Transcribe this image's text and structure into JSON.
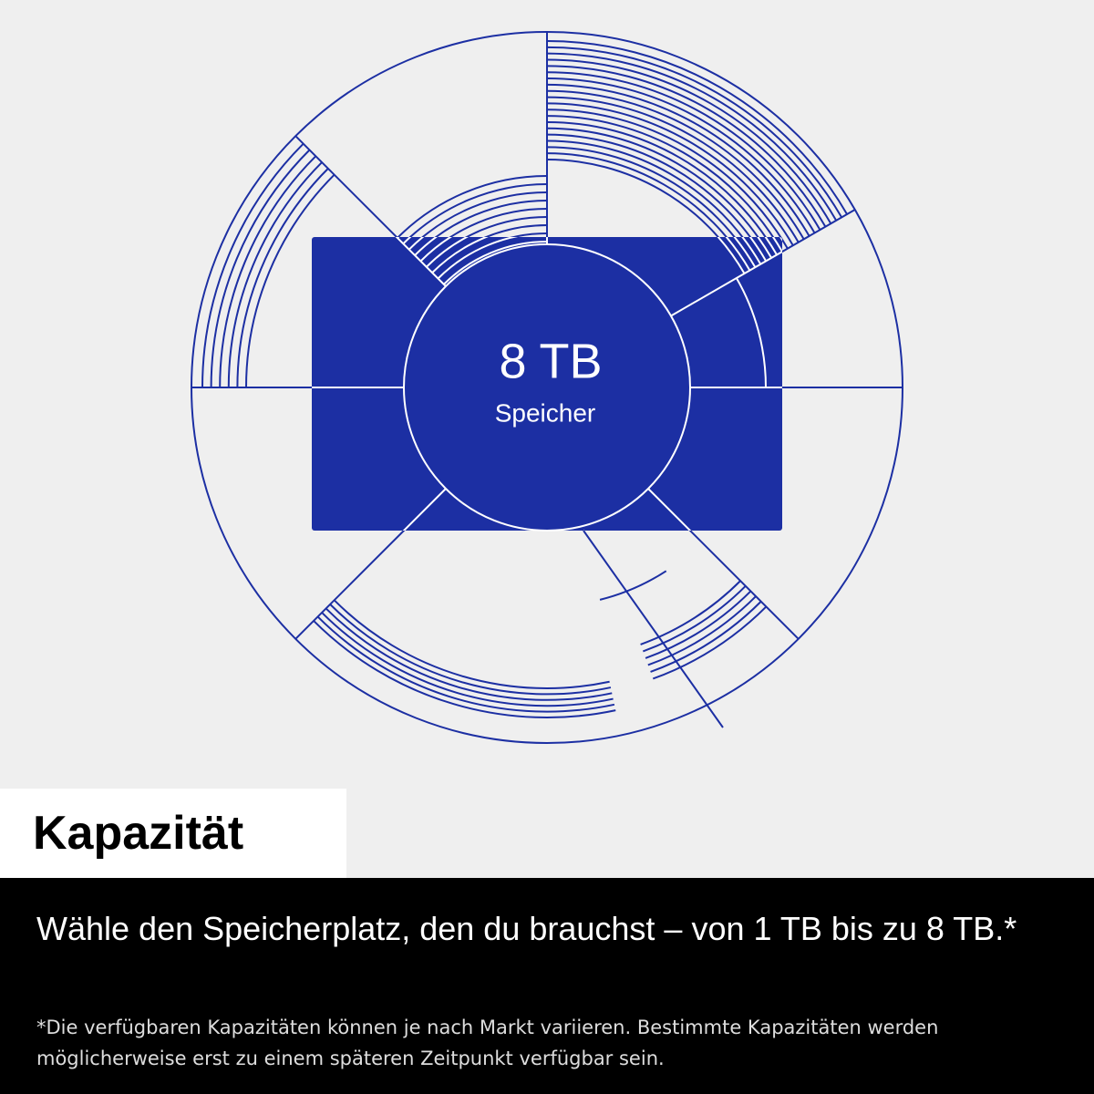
{
  "graphic": {
    "capacity": "8 TB",
    "capacity_label": "Speicher"
  },
  "badge": {
    "title": "Kapazität"
  },
  "description": {
    "headline": "Wähle den Speicherplatz, den du brauchst – von 1 TB bis zu 8 TB.*",
    "footnote": "*Die verfügbaren Kapazitäten können je nach Markt variieren. Bestimmte Kapazitäten werden möglicherweise erst zu einem späteren Zeitpunkt verfügbar sein."
  }
}
